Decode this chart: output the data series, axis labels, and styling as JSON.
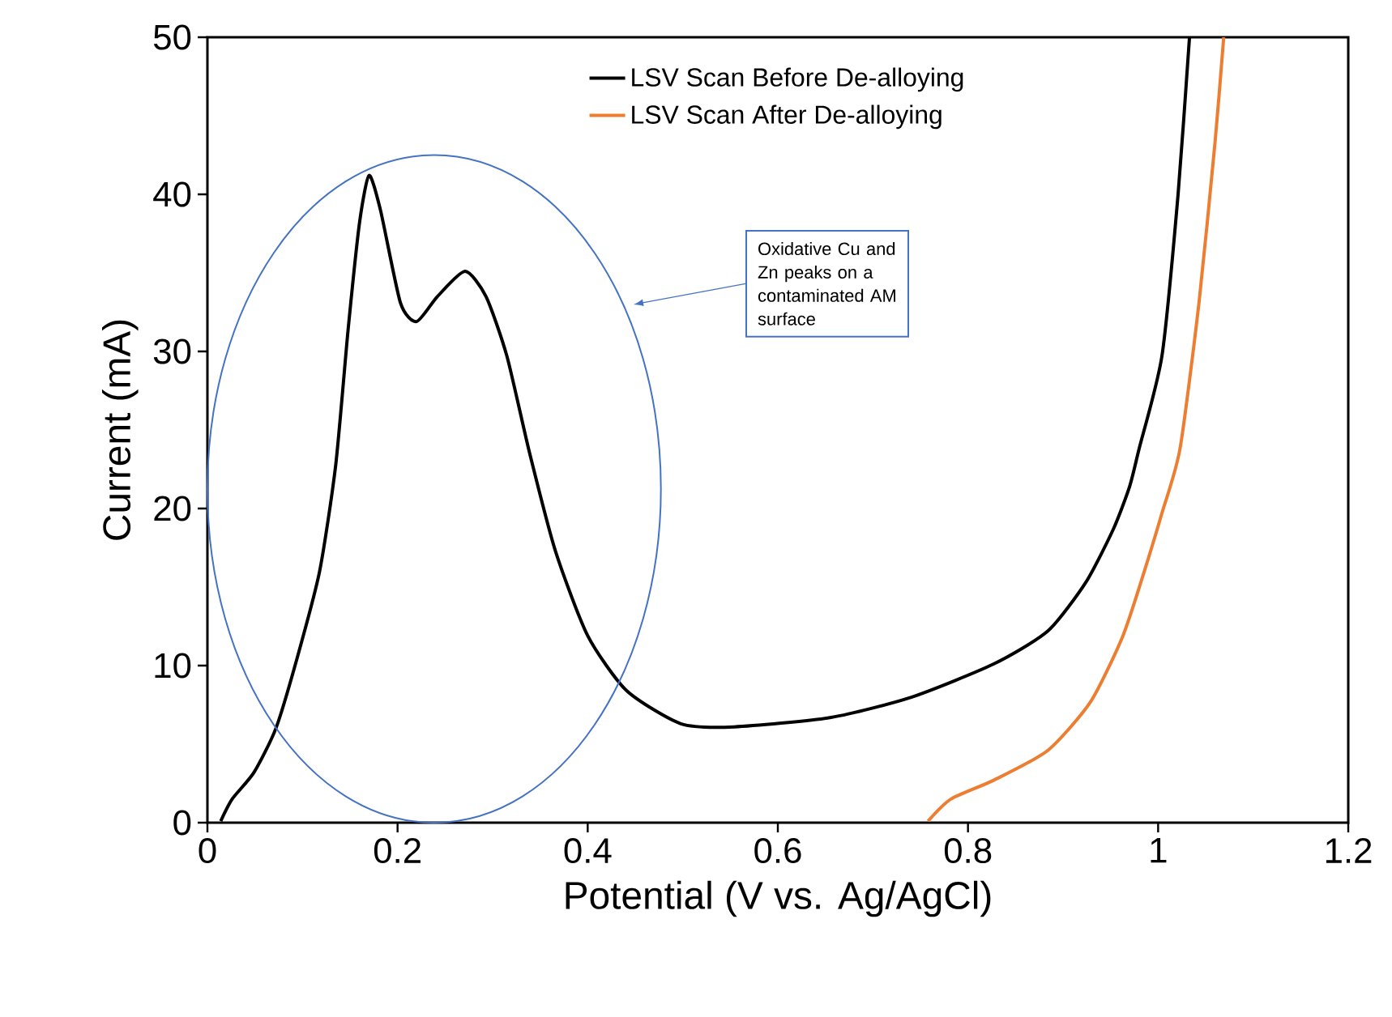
{
  "chart_data": {
    "type": "line",
    "xlabel": "Potential (V vs. Ag/AgCl)",
    "ylabel": "Current (mA)",
    "xlim": [
      0,
      1.2
    ],
    "ylim": [
      0,
      50
    ],
    "xticks": [
      0,
      0.2,
      0.4,
      0.6,
      0.8,
      1,
      1.2
    ],
    "yticks": [
      0,
      10,
      20,
      30,
      40,
      50
    ],
    "legend": "top",
    "grid": false,
    "marker": "none",
    "line_style": "solid",
    "annotations": [
      "Oxidative Cu and Zn peaks on a contaminated AM surface"
    ],
    "series": [
      {
        "name": "LSV Scan Before De-alloying",
        "color": "#000000",
        "x": [
          0.014,
          0.026,
          0.049,
          0.072,
          0.094,
          0.118,
          0.135,
          0.148,
          0.16,
          0.17,
          0.182,
          0.203,
          0.22,
          0.242,
          0.271,
          0.293,
          0.315,
          0.339,
          0.366,
          0.4,
          0.441,
          0.498,
          0.554,
          0.656,
          0.741,
          0.827,
          0.884,
          0.924,
          0.953,
          0.97,
          0.98,
          1.004,
          1.021,
          1.033
        ],
        "values": [
          0.1,
          1.5,
          3.2,
          6.0,
          10.4,
          16,
          22.8,
          31.4,
          38.2,
          41.2,
          39,
          33.1,
          31.9,
          33.5,
          35.1,
          33.5,
          29.7,
          23.5,
          17.3,
          11.9,
          8.4,
          6.3,
          6.1,
          6.7,
          8.0,
          10.1,
          12.2,
          15.3,
          18.7,
          21.4,
          23.8,
          29.7,
          40,
          50
        ]
      },
      {
        "name": "LSV Scan After De-alloying",
        "color": "#ED7D31",
        "x": [
          0.758,
          0.782,
          0.827,
          0.884,
          0.929,
          0.963,
          0.987,
          1.004,
          1.023,
          1.043,
          1.06,
          1.069
        ],
        "values": [
          0.1,
          1.5,
          2.7,
          4.6,
          7.7,
          11.9,
          16.3,
          19.7,
          23.8,
          33.1,
          43.4,
          50
        ]
      }
    ]
  }
}
